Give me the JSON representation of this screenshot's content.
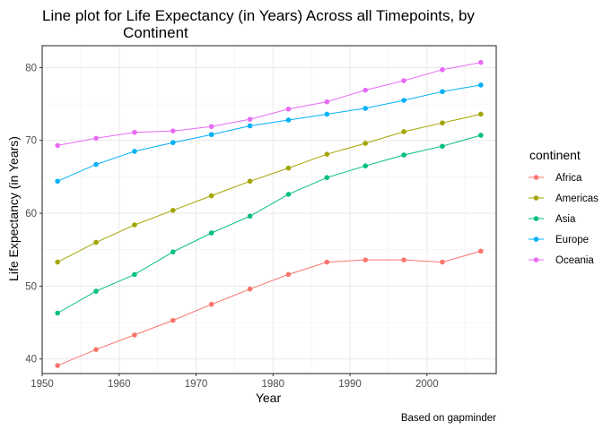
{
  "chart_data": {
    "type": "line",
    "title_line1": "Line plot for Life Expectancy  (in Years) Across all Timepoints, by",
    "title_line2": "Continent",
    "xlabel": "Year",
    "ylabel": "Life Expectancy (in Years)",
    "caption": "Based on gapminder",
    "legend_title": "continent",
    "legend_position": "right",
    "grid": true,
    "xlim": [
      1950,
      2009
    ],
    "ylim": [
      38,
      83
    ],
    "x_ticks": [
      1950,
      1960,
      1970,
      1980,
      1990,
      2000
    ],
    "y_ticks": [
      40,
      50,
      60,
      70,
      80
    ],
    "x": [
      1952,
      1957,
      1962,
      1967,
      1972,
      1977,
      1982,
      1987,
      1992,
      1997,
      2002,
      2007
    ],
    "series": [
      {
        "name": "Africa",
        "color": "#F8766D",
        "values": [
          39.1,
          41.3,
          43.3,
          45.3,
          47.5,
          49.6,
          51.6,
          53.3,
          53.6,
          53.6,
          53.3,
          54.8
        ]
      },
      {
        "name": "Americas",
        "color": "#A3A500",
        "values": [
          53.3,
          56.0,
          58.4,
          60.4,
          62.4,
          64.4,
          66.2,
          68.1,
          69.6,
          71.2,
          72.4,
          73.6
        ]
      },
      {
        "name": "Asia",
        "color": "#00BF7D",
        "values": [
          46.3,
          49.3,
          51.6,
          54.7,
          57.3,
          59.6,
          62.6,
          64.9,
          66.5,
          68.0,
          69.2,
          70.7
        ]
      },
      {
        "name": "Europe",
        "color": "#00B0F6",
        "values": [
          64.4,
          66.7,
          68.5,
          69.7,
          70.8,
          72.0,
          72.8,
          73.6,
          74.4,
          75.5,
          76.7,
          77.6
        ]
      },
      {
        "name": "Oceania",
        "color": "#E76BF3",
        "values": [
          69.3,
          70.3,
          71.1,
          71.3,
          71.9,
          72.9,
          74.3,
          75.3,
          76.9,
          78.2,
          79.7,
          80.7
        ]
      }
    ]
  }
}
